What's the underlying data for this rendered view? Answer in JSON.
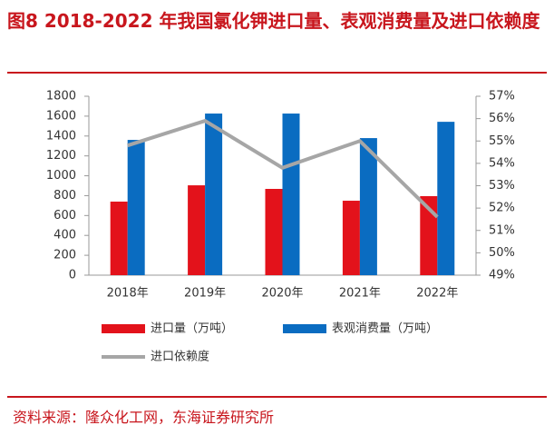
{
  "chart_data": {
    "type": "bar-line",
    "title": "图8  2018-2022 年我国氯化钾进口量、表观消费量及进口依赖度",
    "source": "资料来源：隆众化工网，东海证券研究所",
    "categories": [
      "2018年",
      "2019年",
      "2020年",
      "2021年",
      "2022年"
    ],
    "series": [
      {
        "name": "进口量（万吨）",
        "color": "#e3121b",
        "type": "bar",
        "values": [
          740,
          904,
          868,
          749,
          795
        ]
      },
      {
        "name": "表观消费量（万吨）",
        "color": "#0a6cc1",
        "type": "bar",
        "values": [
          1361,
          1626,
          1626,
          1379,
          1543
        ]
      },
      {
        "name": "进口依赖度",
        "color": "#a6a6a6",
        "type": "line",
        "axis": "y2",
        "values": [
          54.8,
          55.9,
          53.8,
          55.0,
          51.6
        ]
      }
    ],
    "ylim": [
      0,
      1800
    ],
    "yticks": [
      0,
      200,
      400,
      600,
      800,
      1000,
      1200,
      1400,
      1600,
      1800
    ],
    "y2lim": [
      49,
      57
    ],
    "y2ticks": [
      {
        "value": 49,
        "label": "49%"
      },
      {
        "value": 50,
        "label": "50%"
      },
      {
        "value": 51,
        "label": "51%"
      },
      {
        "value": 52,
        "label": "52%"
      },
      {
        "value": 53,
        "label": "53%"
      },
      {
        "value": 54,
        "label": "54%"
      },
      {
        "value": 55,
        "label": "55%"
      },
      {
        "value": 56,
        "label": "56%"
      },
      {
        "value": 57,
        "label": "57%"
      }
    ],
    "grid": false
  }
}
